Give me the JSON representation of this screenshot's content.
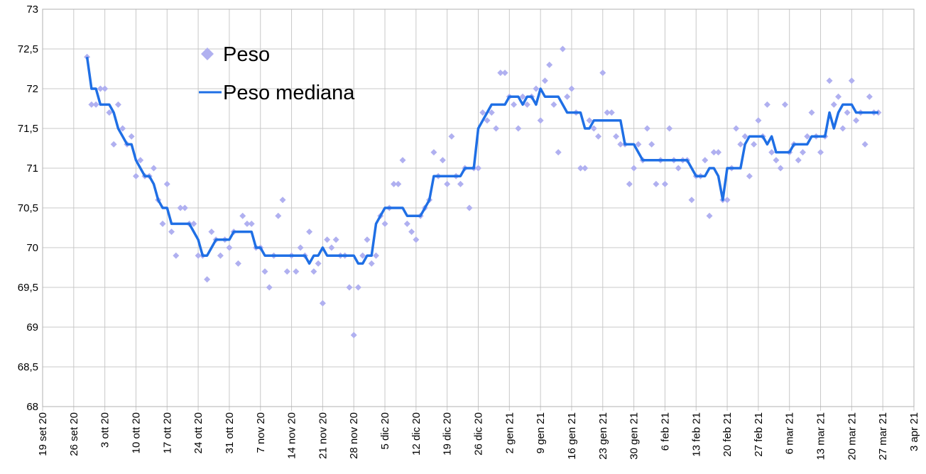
{
  "chart_data": {
    "type": "line",
    "x": [
      "2020-09-29",
      "2020-09-30",
      "2020-10-01",
      "2020-10-02",
      "2020-10-03",
      "2020-10-04",
      "2020-10-05",
      "2020-10-06",
      "2020-10-07",
      "2020-10-08",
      "2020-10-09",
      "2020-10-10",
      "2020-10-11",
      "2020-10-12",
      "2020-10-13",
      "2020-10-14",
      "2020-10-15",
      "2020-10-16",
      "2020-10-17",
      "2020-10-18",
      "2020-10-19",
      "2020-10-20",
      "2020-10-21",
      "2020-10-22",
      "2020-10-23",
      "2020-10-24",
      "2020-10-25",
      "2020-10-26",
      "2020-10-27",
      "2020-10-28",
      "2020-10-29",
      "2020-10-30",
      "2020-10-31",
      "2020-11-01",
      "2020-11-02",
      "2020-11-03",
      "2020-11-04",
      "2020-11-05",
      "2020-11-06",
      "2020-11-07",
      "2020-11-08",
      "2020-11-09",
      "2020-11-10",
      "2020-11-11",
      "2020-11-12",
      "2020-11-13",
      "2020-11-14",
      "2020-11-15",
      "2020-11-16",
      "2020-11-17",
      "2020-11-18",
      "2020-11-19",
      "2020-11-20",
      "2020-11-21",
      "2020-11-22",
      "2020-11-23",
      "2020-11-24",
      "2020-11-25",
      "2020-11-26",
      "2020-11-27",
      "2020-11-28",
      "2020-11-29",
      "2020-11-30",
      "2020-12-01",
      "2020-12-02",
      "2020-12-03",
      "2020-12-04",
      "2020-12-05",
      "2020-12-06",
      "2020-12-07",
      "2020-12-08",
      "2020-12-09",
      "2020-12-10",
      "2020-12-11",
      "2020-12-12",
      "2020-12-13",
      "2020-12-14",
      "2020-12-15",
      "2020-12-16",
      "2020-12-17",
      "2020-12-18",
      "2020-12-19",
      "2020-12-20",
      "2020-12-21",
      "2020-12-22",
      "2020-12-23",
      "2020-12-24",
      "2020-12-25",
      "2020-12-26",
      "2020-12-27",
      "2020-12-28",
      "2020-12-29",
      "2020-12-30",
      "2020-12-31",
      "2021-01-01",
      "2021-01-02",
      "2021-01-03",
      "2021-01-04",
      "2021-01-05",
      "2021-01-06",
      "2021-01-07",
      "2021-01-08",
      "2021-01-09",
      "2021-01-10",
      "2021-01-11",
      "2021-01-12",
      "2021-01-13",
      "2021-01-14",
      "2021-01-15",
      "2021-01-16",
      "2021-01-17",
      "2021-01-18",
      "2021-01-19",
      "2021-01-20",
      "2021-01-21",
      "2021-01-22",
      "2021-01-23",
      "2021-01-24",
      "2021-01-25",
      "2021-01-26",
      "2021-01-27",
      "2021-01-28",
      "2021-01-29",
      "2021-01-30",
      "2021-01-31",
      "2021-02-01",
      "2021-02-02",
      "2021-02-03",
      "2021-02-04",
      "2021-02-05",
      "2021-02-06",
      "2021-02-07",
      "2021-02-08",
      "2021-02-09",
      "2021-02-10",
      "2021-02-11",
      "2021-02-12",
      "2021-02-13",
      "2021-02-14",
      "2021-02-15",
      "2021-02-16",
      "2021-02-17",
      "2021-02-18",
      "2021-02-19",
      "2021-02-20",
      "2021-02-21",
      "2021-02-22",
      "2021-02-23",
      "2021-02-24",
      "2021-02-25",
      "2021-02-26",
      "2021-02-27",
      "2021-02-28",
      "2021-03-01",
      "2021-03-02",
      "2021-03-03",
      "2021-03-04",
      "2021-03-05",
      "2021-03-06",
      "2021-03-07",
      "2021-03-08",
      "2021-03-09",
      "2021-03-10",
      "2021-03-11",
      "2021-03-12",
      "2021-03-13",
      "2021-03-14",
      "2021-03-15",
      "2021-03-16",
      "2021-03-17",
      "2021-03-18",
      "2021-03-19",
      "2021-03-20",
      "2021-03-21",
      "2021-03-22",
      "2021-03-23",
      "2021-03-24",
      "2021-03-25",
      "2021-03-26"
    ],
    "series": [
      {
        "name": "Peso",
        "type": "scatter",
        "color": "#b0b0f0",
        "values": [
          72.4,
          71.8,
          71.8,
          72.0,
          72.0,
          71.7,
          71.3,
          71.8,
          71.5,
          71.3,
          71.4,
          70.9,
          71.1,
          70.9,
          70.9,
          71.0,
          70.6,
          70.3,
          70.8,
          70.2,
          69.9,
          70.5,
          70.5,
          70.3,
          70.3,
          69.9,
          69.9,
          69.6,
          70.2,
          70.1,
          69.9,
          70.1,
          70.0,
          70.2,
          69.8,
          70.4,
          70.3,
          70.3,
          70.0,
          70.0,
          69.7,
          69.5,
          69.9,
          70.4,
          70.6,
          69.7,
          69.9,
          69.7,
          70.0,
          69.9,
          70.2,
          69.7,
          69.8,
          69.3,
          70.1,
          70.0,
          70.1,
          69.9,
          69.9,
          69.5,
          68.9,
          69.5,
          69.9,
          70.1,
          69.8,
          69.9,
          70.4,
          70.3,
          70.5,
          70.8,
          70.8,
          71.1,
          70.3,
          70.2,
          70.1,
          70.4,
          70.5,
          70.6,
          71.2,
          70.9,
          71.1,
          70.8,
          71.4,
          70.9,
          70.8,
          71.0,
          70.5,
          71.0,
          71.0,
          71.7,
          71.6,
          71.7,
          71.5,
          72.2,
          72.2,
          71.9,
          71.8,
          71.5,
          71.9,
          71.8,
          71.9,
          72.0,
          71.6,
          72.1,
          72.3,
          71.8,
          71.2,
          72.5,
          71.9,
          72.0,
          71.7,
          71.0,
          71.0,
          71.6,
          71.5,
          71.4,
          72.2,
          71.7,
          71.7,
          71.4,
          71.3,
          71.3,
          70.8,
          71.0,
          71.3,
          71.1,
          71.5,
          71.3,
          70.8,
          71.1,
          70.8,
          71.5,
          71.1,
          71.0,
          71.1,
          71.1,
          70.6,
          70.9,
          70.9,
          71.1,
          70.4,
          71.2,
          71.2,
          70.6,
          70.6,
          71.0,
          71.5,
          71.3,
          71.4,
          70.9,
          71.3,
          71.6,
          71.4,
          71.8,
          71.2,
          71.1,
          71.0,
          71.8,
          71.2,
          71.3,
          71.1,
          71.2,
          71.4,
          71.7,
          71.4,
          71.2,
          71.4,
          72.1,
          71.8,
          71.9,
          71.5,
          71.7,
          72.1,
          71.6,
          71.7,
          71.3,
          71.9,
          71.7,
          71.7
        ]
      },
      {
        "name": "Peso mediana",
        "type": "line",
        "color": "#1f6fe5",
        "values": [
          72.4,
          72.0,
          72.0,
          71.8,
          71.8,
          71.8,
          71.7,
          71.5,
          71.4,
          71.3,
          71.3,
          71.1,
          71.0,
          70.9,
          70.9,
          70.8,
          70.6,
          70.5,
          70.5,
          70.3,
          70.3,
          70.3,
          70.3,
          70.3,
          70.2,
          70.1,
          69.9,
          69.9,
          70.0,
          70.1,
          70.1,
          70.1,
          70.1,
          70.2,
          70.2,
          70.2,
          70.2,
          70.2,
          70.0,
          70.0,
          69.9,
          69.9,
          69.9,
          69.9,
          69.9,
          69.9,
          69.9,
          69.9,
          69.9,
          69.9,
          69.8,
          69.9,
          69.9,
          70.0,
          69.9,
          69.9,
          69.9,
          69.9,
          69.9,
          69.9,
          69.9,
          69.8,
          69.8,
          69.9,
          69.9,
          70.3,
          70.4,
          70.5,
          70.5,
          70.5,
          70.5,
          70.5,
          70.4,
          70.4,
          70.4,
          70.4,
          70.5,
          70.6,
          70.9,
          70.9,
          70.9,
          70.9,
          70.9,
          70.9,
          70.9,
          71.0,
          71.0,
          71.0,
          71.5,
          71.6,
          71.7,
          71.8,
          71.8,
          71.8,
          71.8,
          71.9,
          71.9,
          71.9,
          71.8,
          71.9,
          71.9,
          71.8,
          72.0,
          71.9,
          71.9,
          71.9,
          71.9,
          71.8,
          71.7,
          71.7,
          71.7,
          71.7,
          71.5,
          71.5,
          71.6,
          71.6,
          71.6,
          71.6,
          71.6,
          71.6,
          71.6,
          71.3,
          71.3,
          71.3,
          71.2,
          71.1,
          71.1,
          71.1,
          71.1,
          71.1,
          71.1,
          71.1,
          71.1,
          71.1,
          71.1,
          71.1,
          71.0,
          70.9,
          70.9,
          70.9,
          71.0,
          71.0,
          70.9,
          70.6,
          71.0,
          71.0,
          71.0,
          71.0,
          71.3,
          71.4,
          71.4,
          71.4,
          71.4,
          71.3,
          71.4,
          71.2,
          71.2,
          71.2,
          71.2,
          71.3,
          71.3,
          71.3,
          71.3,
          71.4,
          71.4,
          71.4,
          71.4,
          71.7,
          71.5,
          71.7,
          71.8,
          71.8,
          71.8,
          71.7,
          71.7,
          71.7,
          71.7,
          71.7,
          71.7
        ]
      }
    ],
    "xlim": [
      "2020-09-19",
      "2021-04-03"
    ],
    "xticks": [
      {
        "value": "2020-09-19",
        "label": "19 set 20"
      },
      {
        "value": "2020-09-26",
        "label": "26 set 20"
      },
      {
        "value": "2020-10-03",
        "label": "3 ott 20"
      },
      {
        "value": "2020-10-10",
        "label": "10 ott 20"
      },
      {
        "value": "2020-10-17",
        "label": "17 ott 20"
      },
      {
        "value": "2020-10-24",
        "label": "24 ott 20"
      },
      {
        "value": "2020-10-31",
        "label": "31 ott 20"
      },
      {
        "value": "2020-11-07",
        "label": "7 nov 20"
      },
      {
        "value": "2020-11-14",
        "label": "14 nov 20"
      },
      {
        "value": "2020-11-21",
        "label": "21 nov 20"
      },
      {
        "value": "2020-11-28",
        "label": "28 nov 20"
      },
      {
        "value": "2020-12-05",
        "label": "5 dic 20"
      },
      {
        "value": "2020-12-12",
        "label": "12 dic 20"
      },
      {
        "value": "2020-12-19",
        "label": "19 dic 20"
      },
      {
        "value": "2020-12-26",
        "label": "26 dic 20"
      },
      {
        "value": "2021-01-02",
        "label": "2 gen 21"
      },
      {
        "value": "2021-01-09",
        "label": "9 gen 21"
      },
      {
        "value": "2021-01-16",
        "label": "16 gen 21"
      },
      {
        "value": "2021-01-23",
        "label": "23 gen 21"
      },
      {
        "value": "2021-01-30",
        "label": "30 gen 21"
      },
      {
        "value": "2021-02-06",
        "label": "6 feb 21"
      },
      {
        "value": "2021-02-13",
        "label": "13 feb 21"
      },
      {
        "value": "2021-02-20",
        "label": "20 feb 21"
      },
      {
        "value": "2021-02-27",
        "label": "27 feb 21"
      },
      {
        "value": "2021-03-06",
        "label": "6 mar 21"
      },
      {
        "value": "2021-03-13",
        "label": "13 mar 21"
      },
      {
        "value": "2021-03-20",
        "label": "20 mar 21"
      },
      {
        "value": "2021-03-27",
        "label": "27 mar 21"
      },
      {
        "value": "2021-04-03",
        "label": "3 apr 21"
      }
    ],
    "ylim": [
      68,
      73
    ],
    "yticks": [
      68,
      {
        "value": 68.5,
        "label": "68,5"
      },
      69,
      {
        "value": 69.5,
        "label": "69,5"
      },
      70,
      {
        "value": 70.5,
        "label": "70,5"
      },
      71,
      {
        "value": 71.5,
        "label": "71,5"
      },
      72,
      {
        "value": 72.5,
        "label": "72,5"
      },
      73
    ],
    "grid": true,
    "legend": "upper left"
  }
}
